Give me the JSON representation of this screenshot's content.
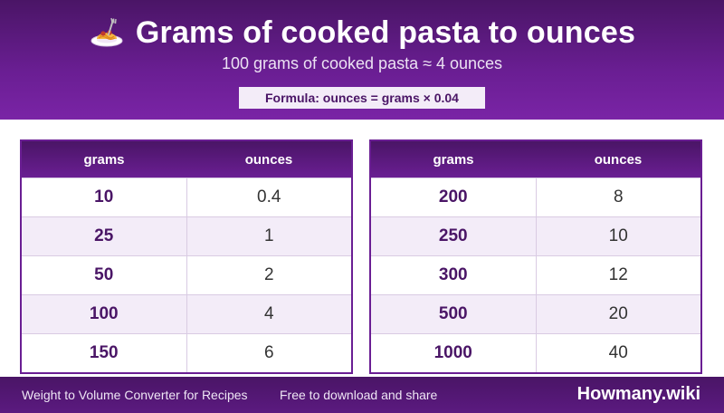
{
  "header": {
    "title": "Grams of cooked pasta to ounces",
    "icon": "pasta-plate-icon",
    "subtitle": "100 grams of cooked pasta ≈ 4 ounces",
    "formula": "Formula: ounces = grams × 0.04"
  },
  "tables": [
    {
      "headers": {
        "grams": "grams",
        "ounces": "ounces"
      },
      "rows": [
        {
          "grams": "10",
          "ounces": "0.4"
        },
        {
          "grams": "25",
          "ounces": "1"
        },
        {
          "grams": "50",
          "ounces": "2"
        },
        {
          "grams": "100",
          "ounces": "4"
        },
        {
          "grams": "150",
          "ounces": "6"
        }
      ]
    },
    {
      "headers": {
        "grams": "grams",
        "ounces": "ounces"
      },
      "rows": [
        {
          "grams": "200",
          "ounces": "8"
        },
        {
          "grams": "250",
          "ounces": "10"
        },
        {
          "grams": "300",
          "ounces": "12"
        },
        {
          "grams": "500",
          "ounces": "20"
        },
        {
          "grams": "1000",
          "ounces": "40"
        }
      ]
    }
  ],
  "footer": {
    "left": "Weight to Volume Converter for Recipes",
    "middle": "Free to download and share",
    "brand": "Howmany.wiki"
  },
  "colors": {
    "brand_purple": "#6a1e93",
    "dark_purple": "#4a1566",
    "row_tint": "#f3ecf8"
  }
}
